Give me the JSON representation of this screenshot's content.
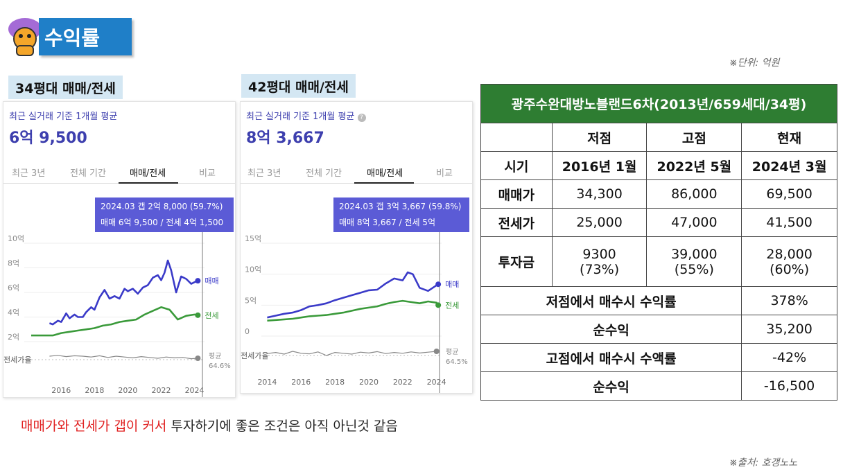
{
  "header": {
    "title": "수익률",
    "unit_note": "※단위: 억원",
    "source_note": "※출처: 호갱노노"
  },
  "panels": [
    {
      "tag": "34평대 매매/전세",
      "subtitle": "최근 실거래 기준 1개월 평균",
      "price": "6억 9,500",
      "tabs": [
        "최근 3년",
        "전체 기간",
        "매매/전세",
        "비교"
      ],
      "active_tab": 2,
      "tooltip_line1": "2024.03  갭 2억 8,000 (59.7%)",
      "tooltip_line2": "매매 6억 9,500 / 전세 4억 1,500"
    },
    {
      "tag": "42평대 매매/전세",
      "subtitle": "최근 실거래 기준 1개월 평균",
      "price": "8억 3,667",
      "tabs": [
        "최근 3년",
        "전체 기간",
        "매매/전세",
        "비교"
      ],
      "active_tab": 2,
      "tooltip_line1": "2024.03  갭 3억 3,667 (59.8%)",
      "tooltip_line2": "매매 8억 3,667 / 전세 5억"
    }
  ],
  "chart_data": [
    {
      "type": "line",
      "ylabel_ticks": [
        "2억",
        "4억",
        "6억",
        "8억",
        "10억"
      ],
      "ylim": [
        2,
        10
      ],
      "x_ticks": [
        "2016",
        "2018",
        "2020",
        "2022",
        "2024"
      ],
      "xlim": [
        2014.2,
        2024.6
      ],
      "ratio_label": "전세가율",
      "avg_label": "평균",
      "avg_value": "64.6%",
      "series": [
        {
          "name": "매매",
          "color": "#3a3ac8",
          "x": [
            2015.3,
            2015.5,
            2015.8,
            2016.0,
            2016.3,
            2016.5,
            2016.8,
            2017.0,
            2017.3,
            2017.5,
            2017.8,
            2018.0,
            2018.3,
            2018.6,
            2018.9,
            2019.2,
            2019.5,
            2019.8,
            2020.0,
            2020.3,
            2020.6,
            2020.9,
            2021.2,
            2021.5,
            2021.8,
            2022.0,
            2022.2,
            2022.4,
            2022.6,
            2022.9,
            2023.2,
            2023.5,
            2023.8,
            2024.1,
            2024.2
          ],
          "values": [
            3.5,
            3.4,
            3.7,
            3.6,
            4.3,
            3.9,
            4.2,
            4.0,
            4.0,
            4.4,
            4.8,
            4.6,
            5.6,
            6.2,
            5.5,
            5.7,
            5.5,
            6.3,
            6.1,
            6.3,
            5.9,
            6.4,
            6.6,
            7.2,
            7.4,
            7.0,
            7.6,
            8.6,
            7.8,
            6.0,
            7.3,
            7.1,
            6.7,
            6.9,
            6.95
          ]
        },
        {
          "name": "전세",
          "color": "#3a9a3a",
          "x": [
            2014.2,
            2015.0,
            2015.5,
            2016.0,
            2016.5,
            2017.0,
            2017.5,
            2018.0,
            2018.5,
            2019.0,
            2019.5,
            2020.0,
            2020.5,
            2021.0,
            2021.5,
            2022.0,
            2022.5,
            2023.0,
            2023.5,
            2024.0,
            2024.2
          ],
          "values": [
            2.5,
            2.5,
            2.5,
            2.7,
            2.8,
            2.9,
            3.0,
            3.1,
            3.3,
            3.4,
            3.6,
            3.7,
            3.8,
            4.2,
            4.5,
            4.8,
            4.6,
            3.8,
            4.1,
            4.2,
            4.15
          ]
        },
        {
          "name": "전세가율",
          "color": "#888888",
          "x": [
            2015.3,
            2015.8,
            2016.3,
            2016.8,
            2017.3,
            2017.8,
            2018.3,
            2018.8,
            2019.3,
            2019.8,
            2020.3,
            2020.8,
            2021.3,
            2021.8,
            2022.3,
            2022.8,
            2023.3,
            2023.8,
            2024.2
          ],
          "values": [
            1.5,
            1.7,
            1.4,
            1.6,
            1.5,
            1.3,
            1.6,
            1.2,
            1.5,
            1.3,
            1.1,
            1.4,
            1.2,
            1.0,
            1.3,
            1.1,
            1.2,
            0.9,
            1.0
          ]
        }
      ]
    },
    {
      "type": "line",
      "ylabel_ticks": [
        "0",
        "5억",
        "10억",
        "15억"
      ],
      "ylim": [
        0,
        15
      ],
      "x_ticks": [
        "2014",
        "2016",
        "2018",
        "2020",
        "2022",
        "2024"
      ],
      "xlim": [
        2013.9,
        2024.3
      ],
      "ratio_label": "전세가율",
      "avg_label": "평균",
      "avg_value": "64.5%",
      "series": [
        {
          "name": "매매",
          "color": "#3a3ac8",
          "x": [
            2014.0,
            2014.5,
            2015.0,
            2015.5,
            2016.0,
            2016.5,
            2017.0,
            2017.5,
            2018.0,
            2018.5,
            2019.0,
            2019.5,
            2020.0,
            2020.5,
            2021.0,
            2021.5,
            2022.0,
            2022.3,
            2022.6,
            2023.0,
            2023.5,
            2024.0,
            2024.1
          ],
          "values": [
            3.0,
            3.3,
            3.6,
            3.8,
            4.2,
            4.8,
            5.0,
            5.3,
            5.8,
            6.2,
            6.6,
            7.0,
            7.4,
            7.5,
            8.5,
            9.3,
            9.0,
            10.3,
            10.0,
            7.8,
            7.3,
            8.2,
            8.37
          ]
        },
        {
          "name": "전세",
          "color": "#3a9a3a",
          "x": [
            2014.0,
            2014.5,
            2015.0,
            2015.5,
            2016.0,
            2016.5,
            2017.0,
            2017.5,
            2018.0,
            2018.5,
            2019.0,
            2019.5,
            2020.0,
            2020.5,
            2021.0,
            2021.5,
            2022.0,
            2022.5,
            2023.0,
            2023.5,
            2024.0,
            2024.1
          ],
          "values": [
            2.5,
            2.6,
            2.7,
            2.8,
            3.0,
            3.2,
            3.3,
            3.4,
            3.6,
            3.8,
            4.1,
            4.4,
            4.6,
            4.8,
            5.2,
            5.5,
            5.7,
            5.5,
            5.3,
            5.6,
            5.4,
            5.0
          ]
        },
        {
          "name": "전세가율",
          "color": "#888888",
          "x": [
            2014.0,
            2014.5,
            2015.0,
            2015.5,
            2016.0,
            2016.5,
            2017.0,
            2017.5,
            2018.0,
            2018.5,
            2019.0,
            2019.5,
            2020.0,
            2020.5,
            2021.0,
            2021.5,
            2022.0,
            2022.5,
            2023.0,
            2023.5,
            2024.0
          ],
          "values": [
            -2.2,
            -2.6,
            -2.0,
            -3.0,
            -2.3,
            -2.1,
            -2.8,
            -1.5,
            -2.6,
            -2.3,
            -2.0,
            -2.7,
            -2.4,
            -2.9,
            -2.2,
            -2.6,
            -2.3,
            -2.8,
            -2.4,
            -2.7,
            -3.0
          ]
        }
      ]
    }
  ],
  "table": {
    "title": "광주수완대방노블랜드6차(2013년/659세대/34평)",
    "columns": [
      "",
      "저점",
      "고점",
      "현재"
    ],
    "rows": [
      [
        "시기",
        "2016년 1월",
        "2022년 5월",
        "2024년 3월"
      ],
      [
        "매매가",
        "34,300",
        "86,000",
        "69,500"
      ],
      [
        "전세가",
        "25,000",
        "47,000",
        "41,500"
      ]
    ],
    "invest": {
      "label": "투자금",
      "c1a": "9300",
      "c1b": "(73%)",
      "c2a": "39,000",
      "c2b": "(55%)",
      "c3a": "28,000",
      "c3b": "(60%)"
    },
    "summary": [
      [
        "저점에서 매수시 수익률",
        "378%"
      ],
      [
        "순수익",
        "35,200"
      ],
      [
        "고점에서 매수시 수액률",
        "-42%"
      ],
      [
        "순수익",
        "-16,500"
      ]
    ]
  },
  "caption": {
    "highlight": "매매가와 전세가 갭이 커서",
    "rest": " 투자하기에 좋은 조건은 아직 아닌것 같음"
  }
}
